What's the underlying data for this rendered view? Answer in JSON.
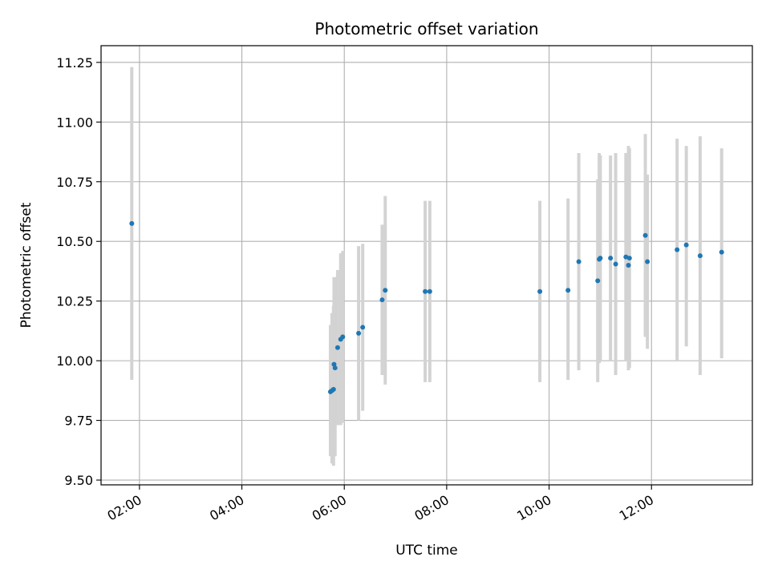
{
  "chart_data": {
    "type": "scatter",
    "title": "Photometric offset variation",
    "xlabel": "UTC time",
    "ylabel": "Photometric offset",
    "x_unit": "hours UTC",
    "xlim": [
      1.25,
      13.97
    ],
    "ylim": [
      9.48,
      11.32
    ],
    "x_ticks": [
      {
        "value": 2,
        "label": "02:00"
      },
      {
        "value": 4,
        "label": "04:00"
      },
      {
        "value": 6,
        "label": "06:00"
      },
      {
        "value": 8,
        "label": "08:00"
      },
      {
        "value": 10,
        "label": "10:00"
      },
      {
        "value": 12,
        "label": "12:00"
      }
    ],
    "y_ticks": [
      {
        "value": 9.5,
        "label": "9.50"
      },
      {
        "value": 9.75,
        "label": "9.75"
      },
      {
        "value": 10.0,
        "label": "10.00"
      },
      {
        "value": 10.25,
        "label": "10.25"
      },
      {
        "value": 10.5,
        "label": "10.50"
      },
      {
        "value": 10.75,
        "label": "10.75"
      },
      {
        "value": 11.0,
        "label": "11.00"
      },
      {
        "value": 11.25,
        "label": "11.25"
      }
    ],
    "grid": true,
    "colors": {
      "point": "#1f77b4",
      "errorbar": "#d3d3d3",
      "grid": "#b0b0b0"
    },
    "points": [
      {
        "x": 1.85,
        "y": 10.575,
        "ylow": 9.92,
        "yhigh": 11.23
      },
      {
        "x": 5.73,
        "y": 9.87,
        "ylow": 9.6,
        "yhigh": 10.15
      },
      {
        "x": 5.76,
        "y": 9.875,
        "ylow": 9.57,
        "yhigh": 10.2
      },
      {
        "x": 5.79,
        "y": 9.88,
        "ylow": 9.56,
        "yhigh": 10.23
      },
      {
        "x": 5.8,
        "y": 9.985,
        "ylow": 9.6,
        "yhigh": 10.35
      },
      {
        "x": 5.82,
        "y": 9.97,
        "ylow": 9.6,
        "yhigh": 10.35
      },
      {
        "x": 5.87,
        "y": 10.055,
        "ylow": 9.73,
        "yhigh": 10.38
      },
      {
        "x": 5.93,
        "y": 10.09,
        "ylow": 9.73,
        "yhigh": 10.45
      },
      {
        "x": 5.97,
        "y": 10.1,
        "ylow": 9.74,
        "yhigh": 10.46
      },
      {
        "x": 6.28,
        "y": 10.115,
        "ylow": 9.75,
        "yhigh": 10.48
      },
      {
        "x": 6.36,
        "y": 10.14,
        "ylow": 9.79,
        "yhigh": 10.49
      },
      {
        "x": 6.74,
        "y": 10.255,
        "ylow": 9.94,
        "yhigh": 10.57
      },
      {
        "x": 6.8,
        "y": 10.295,
        "ylow": 9.9,
        "yhigh": 10.69
      },
      {
        "x": 7.58,
        "y": 10.29,
        "ylow": 9.91,
        "yhigh": 10.67
      },
      {
        "x": 7.67,
        "y": 10.29,
        "ylow": 9.91,
        "yhigh": 10.67
      },
      {
        "x": 9.82,
        "y": 10.29,
        "ylow": 9.91,
        "yhigh": 10.67
      },
      {
        "x": 10.37,
        "y": 10.295,
        "ylow": 9.92,
        "yhigh": 10.68
      },
      {
        "x": 10.58,
        "y": 10.415,
        "ylow": 9.96,
        "yhigh": 10.87
      },
      {
        "x": 10.95,
        "y": 10.335,
        "ylow": 9.91,
        "yhigh": 10.76
      },
      {
        "x": 10.98,
        "y": 10.425,
        "ylow": 9.99,
        "yhigh": 10.87
      },
      {
        "x": 11.0,
        "y": 10.43,
        "ylow": 10.0,
        "yhigh": 10.86
      },
      {
        "x": 11.2,
        "y": 10.43,
        "ylow": 10.0,
        "yhigh": 10.86
      },
      {
        "x": 11.3,
        "y": 10.405,
        "ylow": 9.94,
        "yhigh": 10.87
      },
      {
        "x": 11.5,
        "y": 10.435,
        "ylow": 10.0,
        "yhigh": 10.87
      },
      {
        "x": 11.55,
        "y": 10.4,
        "ylow": 9.96,
        "yhigh": 10.9
      },
      {
        "x": 11.57,
        "y": 10.43,
        "ylow": 9.97,
        "yhigh": 10.89
      },
      {
        "x": 11.88,
        "y": 10.525,
        "ylow": 10.1,
        "yhigh": 10.95
      },
      {
        "x": 11.92,
        "y": 10.415,
        "ylow": 10.05,
        "yhigh": 10.78
      },
      {
        "x": 12.5,
        "y": 10.465,
        "ylow": 10.0,
        "yhigh": 10.93
      },
      {
        "x": 12.68,
        "y": 10.485,
        "ylow": 10.06,
        "yhigh": 10.9
      },
      {
        "x": 12.95,
        "y": 10.44,
        "ylow": 9.94,
        "yhigh": 10.94
      },
      {
        "x": 13.37,
        "y": 10.455,
        "ylow": 10.01,
        "yhigh": 10.89
      }
    ]
  }
}
